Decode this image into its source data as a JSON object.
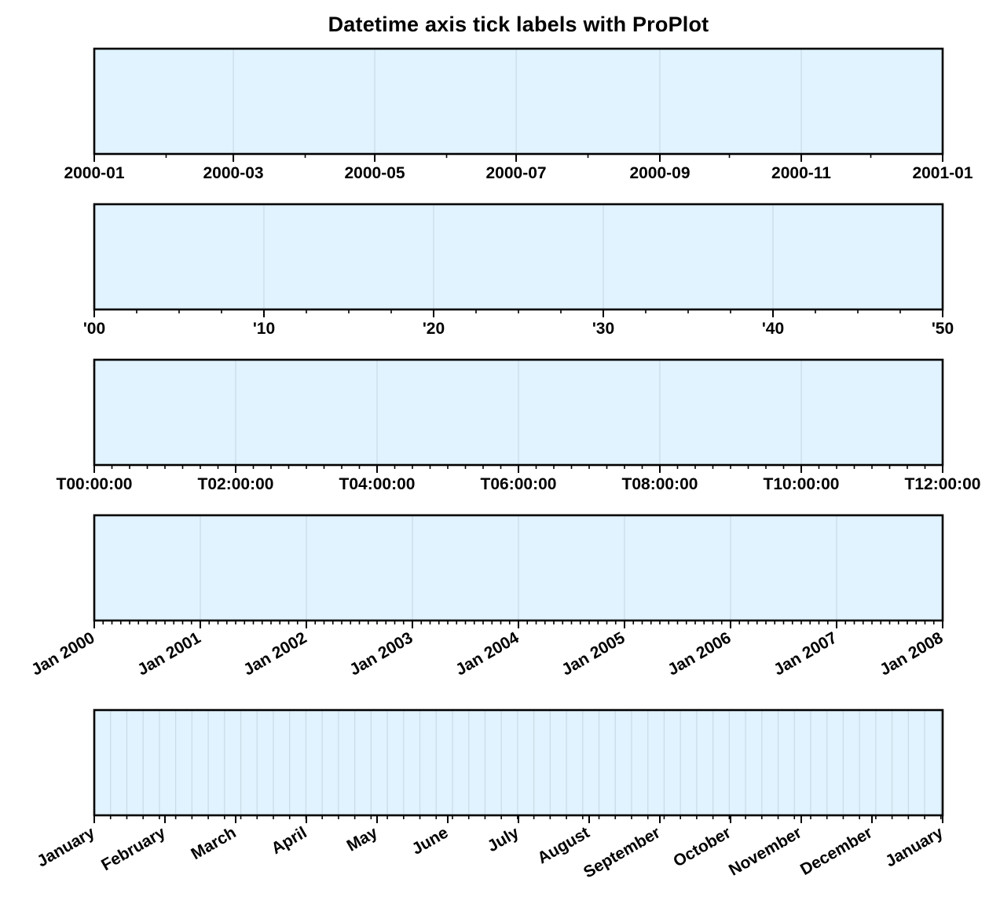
{
  "title": "Datetime axis tick labels with ProPlot",
  "colors": {
    "panel_bg": "#e0f3fe",
    "grid": "#c9dbe6",
    "frame": "#000000",
    "text": "#000000"
  },
  "chart_data": [
    {
      "type": "line",
      "x_unit": "date",
      "xlim": [
        "2000-01-01",
        "2001-01-01"
      ],
      "grid": true,
      "major_ticks": [
        "2000-01-01",
        "2000-03-01",
        "2000-05-01",
        "2000-07-01",
        "2000-09-01",
        "2000-11-01",
        "2001-01-01"
      ],
      "tick_labels": [
        "2000-01",
        "2000-03",
        "2000-05",
        "2000-07",
        "2000-09",
        "2000-11",
        "2001-01"
      ],
      "minor_ticks": [
        "2000-02-01",
        "2000-04-01",
        "2000-06-01",
        "2000-08-01",
        "2000-10-01",
        "2000-12-01"
      ],
      "label_rotation": 0
    },
    {
      "type": "line",
      "x_unit": "year",
      "xlim": [
        2000,
        2050
      ],
      "grid": true,
      "major_ticks": [
        2000,
        2010,
        2020,
        2030,
        2040,
        2050
      ],
      "tick_labels": [
        "'00",
        "'10",
        "'20",
        "'30",
        "'40",
        "'50"
      ],
      "minor_ticks": [
        2002.5,
        2005,
        2007.5,
        2012.5,
        2015,
        2017.5,
        2022.5,
        2025,
        2027.5,
        2032.5,
        2035,
        2037.5,
        2042.5,
        2045,
        2047.5
      ],
      "label_rotation": 0
    },
    {
      "type": "line",
      "x_unit": "hour",
      "xlim": [
        0,
        12
      ],
      "grid": true,
      "major_ticks": [
        0,
        2,
        4,
        6,
        8,
        10,
        12
      ],
      "tick_labels": [
        "T00:00:00",
        "T02:00:00",
        "T04:00:00",
        "T06:00:00",
        "T08:00:00",
        "T10:00:00",
        "T12:00:00"
      ],
      "minor_tick_step": 0.25,
      "label_rotation": 0
    },
    {
      "type": "line",
      "x_unit": "year",
      "xlim": [
        2000,
        2008
      ],
      "grid": true,
      "major_ticks": [
        2000,
        2001,
        2002,
        2003,
        2004,
        2005,
        2006,
        2007,
        2008
      ],
      "tick_labels": [
        "Jan 2000",
        "Jan 2001",
        "Jan 2002",
        "Jan 2003",
        "Jan 2004",
        "Jan 2005",
        "Jan 2006",
        "Jan 2007",
        "Jan 2008"
      ],
      "minor_tick_step": 0.0833333333,
      "label_rotation": -30
    },
    {
      "type": "line",
      "x_unit": "month",
      "xlim": [
        0,
        12
      ],
      "grid": true,
      "grid_on_minor": true,
      "major_ticks": [
        0,
        1,
        2,
        3,
        4,
        5,
        6,
        7,
        8,
        9,
        10,
        11,
        12
      ],
      "tick_labels": [
        "January",
        "February",
        "March",
        "April",
        "May",
        "June",
        "July",
        "August",
        "September",
        "October",
        "November",
        "December",
        "January"
      ],
      "minor_tick_step": 0.2303,
      "label_rotation": -30
    }
  ]
}
